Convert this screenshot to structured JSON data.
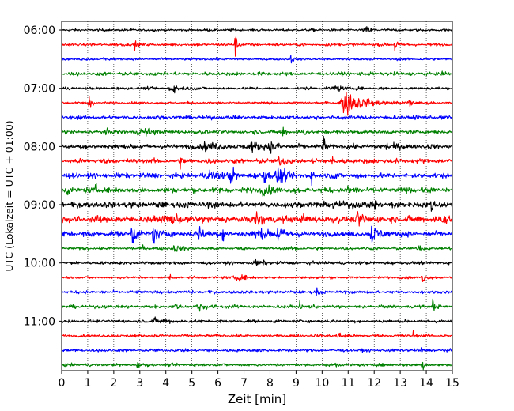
{
  "chart_data": {
    "type": "line",
    "subtype": "helicorder",
    "title": "",
    "xlabel": "Zeit  [min]",
    "ylabel": "UTC (Lokalzeit = UTC + 01:00)",
    "xlim": [
      0,
      15
    ],
    "x_ticks": [
      0,
      1,
      2,
      3,
      4,
      5,
      6,
      7,
      8,
      9,
      10,
      11,
      12,
      13,
      14,
      15
    ],
    "x_tick_labels": [
      "0",
      "1",
      "2",
      "3",
      "4",
      "5",
      "6",
      "7",
      "8",
      "9",
      "10",
      "11",
      "12",
      "13",
      "14",
      "15"
    ],
    "y_tick_labels": [
      "06:00",
      "07:00",
      "08:00",
      "09:00",
      "10:00",
      "11:00"
    ],
    "grid": "vertical-dotted",
    "trace_colors": [
      "#000000",
      "#ff0000",
      "#0000ff",
      "#008000"
    ],
    "trace_count": 24,
    "traces": [
      {
        "base_noise": 0.1,
        "events": [
          [
            11.7,
            0.25,
            0.3
          ]
        ]
      },
      {
        "base_noise": 0.12,
        "events": [
          [
            2.8,
            0.4,
            0.1
          ],
          [
            6.65,
            1.4,
            0.08
          ],
          [
            12.8,
            1.1,
            0.08
          ]
        ]
      },
      {
        "base_noise": 0.1,
        "events": [
          [
            1.6,
            0.25,
            0.05
          ],
          [
            8.8,
            0.5,
            0.05
          ]
        ]
      },
      {
        "base_noise": 0.15,
        "events": []
      },
      {
        "base_noise": 0.12,
        "events": [
          [
            4.2,
            0.3,
            0.4
          ],
          [
            10.5,
            0.4,
            0.2
          ]
        ]
      },
      {
        "base_noise": 0.1,
        "events": [
          [
            1.05,
            0.9,
            0.08
          ],
          [
            10.9,
            1.2,
            0.6
          ],
          [
            13.35,
            1.0,
            0.05
          ]
        ]
      },
      {
        "base_noise": 0.16,
        "events": []
      },
      {
        "base_noise": 0.16,
        "events": [
          [
            1.7,
            0.5,
            0.05
          ],
          [
            3.0,
            0.3,
            0.5
          ],
          [
            8.5,
            0.8,
            0.06
          ],
          [
            9.3,
            0.4,
            0.05
          ]
        ]
      },
      {
        "base_noise": 0.2,
        "events": [
          [
            5.5,
            0.35,
            0.4
          ],
          [
            7.3,
            0.4,
            0.4
          ],
          [
            8.0,
            0.3,
            0.3
          ],
          [
            10.05,
            1.1,
            0.06
          ],
          [
            12.5,
            0.3,
            0.3
          ]
        ]
      },
      {
        "base_noise": 0.2,
        "events": [
          [
            4.55,
            0.6,
            0.06
          ],
          [
            8.3,
            0.5,
            0.2
          ],
          [
            9.8,
            0.3,
            0.1
          ],
          [
            10.4,
            0.4,
            0.1
          ]
        ]
      },
      {
        "base_noise": 0.22,
        "events": [
          [
            5.7,
            0.6,
            0.3
          ],
          [
            6.5,
            1.2,
            0.12
          ],
          [
            7.8,
            0.5,
            0.2
          ],
          [
            8.3,
            0.9,
            0.25
          ],
          [
            9.6,
            0.5,
            0.1
          ],
          [
            10.5,
            0.6,
            0.06
          ]
        ]
      },
      {
        "base_noise": 0.22,
        "events": [
          [
            0.2,
            0.4,
            0.1
          ],
          [
            1.3,
            0.7,
            0.05
          ],
          [
            7.7,
            0.4,
            0.3
          ],
          [
            11.0,
            0.4,
            0.1
          ],
          [
            11.5,
            0.5,
            0.06
          ]
        ]
      },
      {
        "base_noise": 0.26,
        "events": [
          [
            10.4,
            0.7,
            0.06
          ],
          [
            11.2,
            0.8,
            0.06
          ],
          [
            12.0,
            0.8,
            0.06
          ],
          [
            12.7,
            0.6,
            0.06
          ],
          [
            14.2,
            0.6,
            0.1
          ]
        ]
      },
      {
        "base_noise": 0.28,
        "events": [
          [
            4.0,
            0.3,
            0.4
          ],
          [
            7.5,
            0.5,
            0.25
          ],
          [
            9.3,
            0.4,
            0.15
          ],
          [
            11.4,
            0.6,
            0.2
          ],
          [
            14.7,
            0.7,
            0.1
          ]
        ]
      },
      {
        "base_noise": 0.22,
        "events": [
          [
            2.7,
            1.6,
            0.12
          ],
          [
            3.5,
            1.5,
            0.12
          ],
          [
            5.3,
            0.9,
            0.15
          ],
          [
            6.2,
            0.7,
            0.1
          ],
          [
            7.5,
            0.6,
            0.3
          ],
          [
            8.3,
            0.8,
            0.2
          ],
          [
            11.9,
            0.9,
            0.25
          ]
        ]
      },
      {
        "base_noise": 0.12,
        "events": [
          [
            3.1,
            0.4,
            0.05
          ],
          [
            4.3,
            0.3,
            0.3
          ],
          [
            9.0,
            0.3,
            0.1
          ],
          [
            13.7,
            1.1,
            0.06
          ]
        ]
      },
      {
        "base_noise": 0.13,
        "events": [
          [
            7.5,
            0.25,
            0.3
          ]
        ]
      },
      {
        "base_noise": 0.11,
        "events": [
          [
            4.15,
            0.4,
            0.05
          ],
          [
            6.7,
            0.3,
            0.3
          ],
          [
            9.8,
            0.3,
            0.05
          ],
          [
            13.85,
            1.0,
            0.05
          ]
        ]
      },
      {
        "base_noise": 0.13,
        "events": [
          [
            9.8,
            0.3,
            0.1
          ]
        ]
      },
      {
        "base_noise": 0.14,
        "events": [
          [
            4.35,
            0.5,
            0.05
          ],
          [
            5.2,
            0.3,
            0.4
          ],
          [
            9.15,
            0.6,
            0.05
          ],
          [
            14.25,
            1.0,
            0.05
          ]
        ]
      },
      {
        "base_noise": 0.13,
        "events": [
          [
            3.6,
            0.25,
            0.4
          ]
        ]
      },
      {
        "base_noise": 0.12,
        "events": [
          [
            10.6,
            0.3,
            0.2
          ],
          [
            13.5,
            0.6,
            0.05
          ]
        ]
      },
      {
        "base_noise": 0.12,
        "events": [
          [
            13.8,
            0.3,
            0.05
          ]
        ]
      },
      {
        "base_noise": 0.12,
        "events": [
          [
            2.9,
            0.25,
            0.1
          ],
          [
            10.5,
            0.3,
            0.1
          ],
          [
            13.85,
            0.9,
            0.05
          ]
        ]
      }
    ]
  }
}
